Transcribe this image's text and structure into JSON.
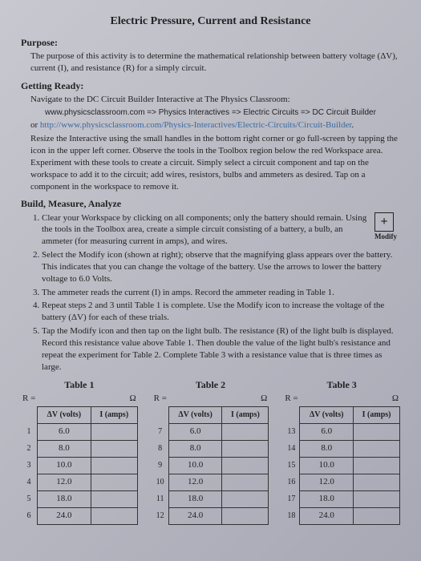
{
  "title": "Electric Pressure, Current and Resistance",
  "purpose": {
    "head": "Purpose:",
    "body": "The purpose of this activity is to determine the mathematical relationship between battery voltage (ΔV), current (I), and resistance (R) for a simply circuit."
  },
  "getting_ready": {
    "head": "Getting Ready:",
    "intro": "Navigate to the DC Circuit Builder Interactive at The Physics Classroom:",
    "path": "www.physicsclassroom.com => Physics Interactives => Electric Circuits => DC Circuit Builder",
    "or": "or",
    "url": "http://www.physicsclassroom.com/Physics-Interactives/Electric-Circuits/Circuit-Builder",
    "resize": "Resize the Interactive using the small handles in the bottom right corner or go full-screen by tapping the icon in the upper left corner. Observe the tools in the Toolbox region below the red Workspace area. Experiment with these tools to create a circuit. Simply select a circuit component and tap on the workspace to add it to the circuit; add wires, resistors, bulbs and ammeters as desired. Tap on a component in the workspace to remove it."
  },
  "build": {
    "head": "Build, Measure, Analyze",
    "steps": [
      "Clear your Workspace by clicking on all components; only the battery should remain. Using the tools in the Toolbox area, create a simple circuit consisting of a battery, a bulb, an ammeter (for measuring current in amps), and wires.",
      "Select the Modify icon (shown at right); observe that the magnifying glass appears over the battery. This indicates that you can change the voltage of the battery. Use the arrows to lower the battery voltage to 6.0 Volts.",
      "The ammeter reads the current (I) in amps. Record the ammeter reading in Table 1.",
      "Repeat steps 2 and 3 until Table 1 is complete. Use the Modify icon to increase the voltage of the battery (ΔV) for each of these trials.",
      "Tap the Modify icon and then tap on the light bulb. The resistance (R) of the light bulb is displayed. Record this resistance value above Table 1. Then double the value of the light bulb's resistance and repeat the experiment for Table 2. Complete Table 3 with a resistance value that is three times as large."
    ],
    "modify_label": "Modify"
  },
  "tables": {
    "col_v": "ΔV (volts)",
    "col_i": "I (amps)",
    "r_label": "R =",
    "ohm": "Ω",
    "t": [
      {
        "title": "Table 1",
        "start": 1,
        "rows": [
          "6.0",
          "8.0",
          "10.0",
          "12.0",
          "18.0",
          "24.0"
        ]
      },
      {
        "title": "Table 2",
        "start": 7,
        "rows": [
          "6.0",
          "8.0",
          "10.0",
          "12.0",
          "18.0",
          "24.0"
        ]
      },
      {
        "title": "Table 3",
        "start": 13,
        "rows": [
          "6.0",
          "8.0",
          "10.0",
          "12.0",
          "18.0",
          "24.0"
        ]
      }
    ]
  }
}
